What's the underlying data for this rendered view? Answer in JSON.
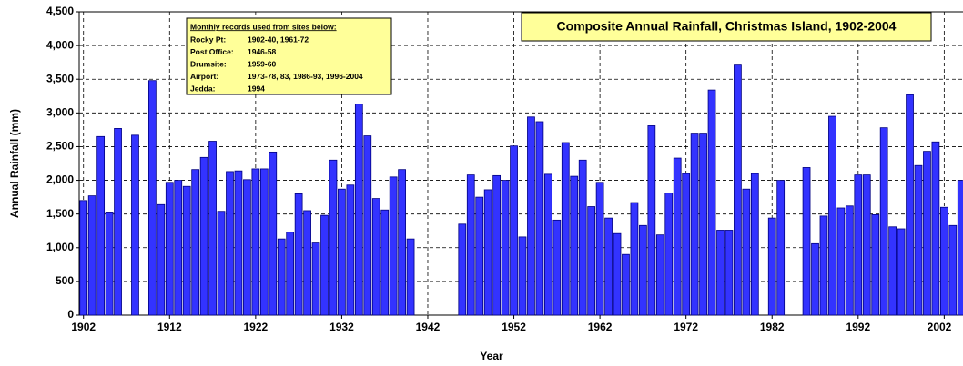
{
  "chart_data": {
    "type": "bar",
    "title": "Composite Annual Rainfall, Christmas Island, 1902-2004",
    "x_label": "Year",
    "y_label": "Annual Rainfall (mm)",
    "note_title": "Monthly records used from sites below:",
    "note_rows": [
      [
        "Rocky Pt:",
        "1902-40, 1961-72"
      ],
      [
        "Post Office:",
        "1946-58"
      ],
      [
        "Drumsite:",
        "1959-60"
      ],
      [
        "Airport:",
        "1973-78, 83, 1986-93, 1996-2004"
      ],
      [
        "Jedda:",
        "1994"
      ]
    ],
    "color": "#3333ff",
    "x": [
      1902,
      1903,
      1904,
      1905,
      1906,
      1907,
      1908,
      1909,
      1910,
      1911,
      1912,
      1913,
      1914,
      1915,
      1916,
      1917,
      1918,
      1919,
      1920,
      1921,
      1922,
      1923,
      1924,
      1925,
      1926,
      1927,
      1928,
      1929,
      1930,
      1931,
      1932,
      1933,
      1934,
      1935,
      1936,
      1937,
      1938,
      1939,
      1940,
      1941,
      1942,
      1943,
      1944,
      1945,
      1946,
      1947,
      1948,
      1949,
      1950,
      1951,
      1952,
      1953,
      1954,
      1955,
      1956,
      1957,
      1958,
      1959,
      1960,
      1961,
      1962,
      1963,
      1964,
      1965,
      1966,
      1967,
      1968,
      1969,
      1970,
      1971,
      1972,
      1973,
      1974,
      1975,
      1976,
      1977,
      1978,
      1979,
      1980,
      1981,
      1982,
      1983,
      1984,
      1985,
      1986,
      1987,
      1988,
      1989,
      1990,
      1991,
      1992,
      1993,
      1994,
      1995,
      1996,
      1997,
      1998,
      1999,
      2000,
      2001,
      2002,
      2003,
      2004
    ],
    "values": [
      1700,
      1770,
      2650,
      1530,
      2770,
      null,
      2670,
      null,
      3480,
      1640,
      1970,
      2000,
      1910,
      2160,
      2340,
      2580,
      1540,
      2130,
      2140,
      2010,
      2170,
      2170,
      2420,
      1130,
      1230,
      1800,
      1550,
      1070,
      1480,
      2300,
      1870,
      1930,
      3130,
      2660,
      1730,
      1560,
      2050,
      2160,
      1130,
      null,
      null,
      null,
      null,
      null,
      1350,
      2080,
      1750,
      1860,
      2070,
      2000,
      2510,
      1160,
      2940,
      2870,
      2090,
      1410,
      2560,
      2060,
      2300,
      1610,
      1970,
      1440,
      1210,
      900,
      1670,
      1330,
      2810,
      1190,
      1810,
      2330,
      2100,
      2700,
      2700,
      3340,
      1260,
      1260,
      3710,
      1870,
      2100,
      null,
      1440,
      2000,
      null,
      null,
      2190,
      1060,
      1470,
      2950,
      1590,
      1620,
      2080,
      2080,
      1490,
      2780,
      1310,
      1280,
      3270,
      2220,
      2430,
      2570,
      1600,
      1330,
      2000
    ],
    "xlim": [
      1901.5,
      2004.5
    ],
    "xticks": [
      1902,
      1912,
      1922,
      1932,
      1942,
      1952,
      1962,
      1972,
      1982,
      1992,
      2002
    ],
    "ylim": [
      0,
      4500
    ],
    "yticks": [
      0,
      500,
      {
        "value": 1000,
        "label": "1,000"
      },
      {
        "value": 1500,
        "label": "1,500"
      },
      {
        "value": 2000,
        "label": "2,000"
      },
      {
        "value": 2500,
        "label": "2,500"
      },
      {
        "value": 3000,
        "label": "3,000"
      },
      {
        "value": 3500,
        "label": "3,500"
      },
      {
        "value": 4000,
        "label": "4,000"
      },
      {
        "value": 4500,
        "label": "4,500"
      }
    ],
    "grid": true
  }
}
